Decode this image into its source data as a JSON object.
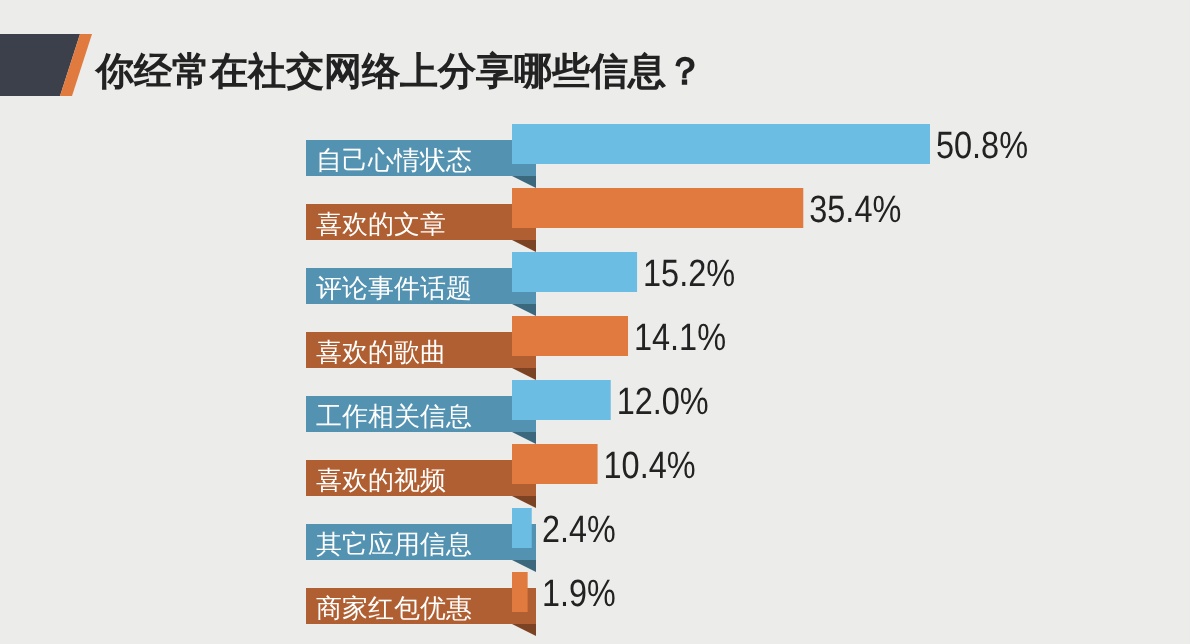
{
  "chart_data": {
    "type": "bar",
    "orientation": "horizontal",
    "title": "你经常在社交网络上分享哪些信息？",
    "categories": [
      "自己心情状态",
      "喜欢的文章",
      "评论事件话题",
      "喜欢的歌曲",
      "工作相关信息",
      "喜欢的视频",
      "其它应用信息",
      "商家红包优惠"
    ],
    "values": [
      50.8,
      35.4,
      15.2,
      14.1,
      12.0,
      10.4,
      2.4,
      1.9
    ],
    "value_labels": [
      "50.8%",
      "35.4%",
      "15.2%",
      "14.1%",
      "12.0%",
      "10.4%",
      "2.4%",
      "1.9%"
    ],
    "colors": [
      "#6bbde3",
      "#e07a3f",
      "#6bbde3",
      "#e07a3f",
      "#6bbde3",
      "#e07a3f",
      "#6bbde3",
      "#e07a3f"
    ]
  }
}
